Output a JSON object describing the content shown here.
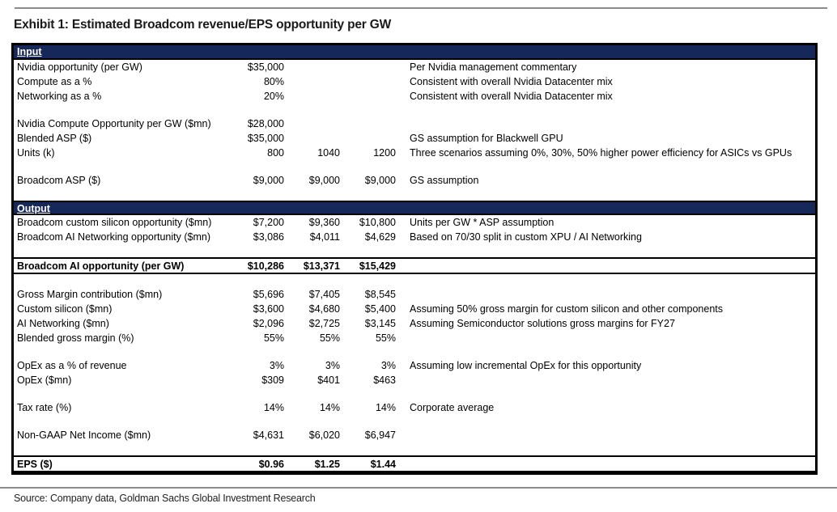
{
  "page": {
    "title": "Exhibit 1: Estimated Broadcom revenue/EPS opportunity per GW",
    "source": "Source: Company data, Goldman Sachs Global Investment Research"
  },
  "colors": {
    "header_bg": "#16275a",
    "header_text": "#ffffff",
    "table_border": "#000000",
    "rule": "#8c8c8c"
  },
  "table": {
    "sections": [
      {
        "header": "Input",
        "rows": [
          {
            "label": "Nvidia opportunity (per GW)",
            "values": [
              "$35,000",
              "",
              ""
            ],
            "comment": "Per Nvidia management commentary"
          },
          {
            "label": "Compute as a %",
            "values": [
              "80%",
              "",
              ""
            ],
            "comment": "Consistent with overall Nvidia Datacenter mix"
          },
          {
            "label": "Networking as a %",
            "values": [
              "20%",
              "",
              ""
            ],
            "comment": "Consistent with overall Nvidia Datacenter mix"
          },
          {
            "type": "blank"
          },
          {
            "label": "Nvidia Compute Opportunity per GW ($mn)",
            "values": [
              "$28,000",
              "",
              ""
            ],
            "comment": ""
          },
          {
            "label": "Blended ASP ($)",
            "values": [
              "$35,000",
              "",
              ""
            ],
            "comment": "GS assumption for Blackwell GPU"
          },
          {
            "label": "Units (k)",
            "values": [
              "800",
              "1040",
              "1200"
            ],
            "comment": "Three scenarios assuming 0%, 30%, 50% higher power efficiency for ASICs vs GPUs"
          },
          {
            "type": "blank"
          },
          {
            "label": "Broadcom ASP ($)",
            "values": [
              "$9,000",
              "$9,000",
              "$9,000"
            ],
            "comment": "GS assumption"
          },
          {
            "type": "blank"
          }
        ]
      },
      {
        "header": "Output",
        "rows": [
          {
            "label": "Broadcom custom silicon opportunity ($mn)",
            "values": [
              "$7,200",
              "$9,360",
              "$10,800"
            ],
            "comment": "Units per GW * ASP assumption"
          },
          {
            "label": "Broadcom AI Networking opportunity ($mn)",
            "values": [
              "$3,086",
              "$4,011",
              "$4,629"
            ],
            "comment": "Based on 70/30 split in custom XPU / AI Networking"
          },
          {
            "type": "blank"
          },
          {
            "type": "total",
            "label": "Broadcom AI opportunity (per GW)",
            "values": [
              "$10,286",
              "$13,371",
              "$15,429"
            ],
            "comment": ""
          },
          {
            "type": "blank"
          },
          {
            "label": "Gross Margin contribution ($mn)",
            "values": [
              "$5,696",
              "$7,405",
              "$8,545"
            ],
            "comment": ""
          },
          {
            "label": "Custom silicon ($mn)",
            "values": [
              "$3,600",
              "$4,680",
              "$5,400"
            ],
            "comment": "Assuming 50% gross margin for custom silicon and other components"
          },
          {
            "label": "AI Networking ($mn)",
            "values": [
              "$2,096",
              "$2,725",
              "$3,145"
            ],
            "comment": "Assuming Semiconductor solutions gross margins for FY27"
          },
          {
            "label": "Blended gross margin (%)",
            "values": [
              "55%",
              "55%",
              "55%"
            ],
            "comment": ""
          },
          {
            "type": "blank"
          },
          {
            "label": "OpEx as a % of revenue",
            "values": [
              "3%",
              "3%",
              "3%"
            ],
            "comment": "Assuming low incremental OpEx for this opportunity"
          },
          {
            "label": "OpEx ($mn)",
            "values": [
              "$309",
              "$401",
              "$463"
            ],
            "comment": ""
          },
          {
            "type": "blank"
          },
          {
            "label": "Tax rate (%)",
            "values": [
              "14%",
              "14%",
              "14%"
            ],
            "comment": "Corporate average"
          },
          {
            "type": "blank"
          },
          {
            "label": "Non-GAAP Net Income ($mn)",
            "values": [
              "$4,631",
              "$6,020",
              "$6,947"
            ],
            "comment": ""
          },
          {
            "type": "blank"
          },
          {
            "type": "total",
            "label": "EPS ($)",
            "values": [
              "$0.96",
              "$1.25",
              "$1.44"
            ],
            "comment": ""
          }
        ]
      }
    ]
  }
}
